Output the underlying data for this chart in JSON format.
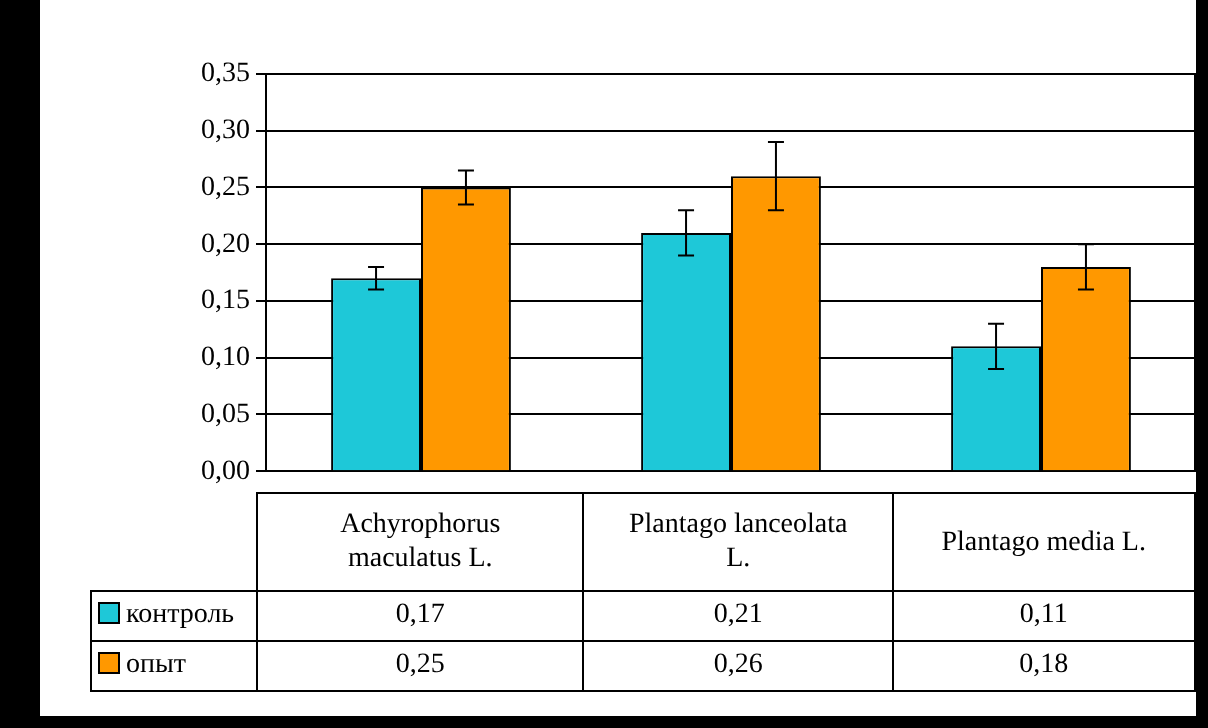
{
  "chart_data": {
    "type": "bar",
    "categories": [
      "Achyrophorus maculatus L.",
      "Plantago lanceolata L.",
      "Plantago media L."
    ],
    "series": [
      {
        "name": "контроль",
        "color": "#1ec8d8",
        "values": [
          0.17,
          0.21,
          0.11
        ],
        "value_labels": [
          "0,17",
          "0,21",
          "0,11"
        ],
        "errors": [
          0.01,
          0.02,
          0.02
        ]
      },
      {
        "name": "опыт",
        "color": "#ff9800",
        "values": [
          0.25,
          0.26,
          0.18
        ],
        "value_labels": [
          "0,25",
          "0,26",
          "0,18"
        ],
        "errors": [
          0.015,
          0.03,
          0.02
        ]
      }
    ],
    "ylim": [
      0,
      0.35
    ],
    "yticks": [
      {
        "value": 0,
        "label": "0,00"
      },
      {
        "value": 0.05,
        "label": "0,05"
      },
      {
        "value": 0.1,
        "label": "0,10"
      },
      {
        "value": 0.15,
        "label": "0,15"
      },
      {
        "value": 0.2,
        "label": "0,20"
      },
      {
        "value": 0.25,
        "label": "0,25"
      },
      {
        "value": 0.3,
        "label": "0,30"
      },
      {
        "value": 0.35,
        "label": "0,35"
      }
    ],
    "grid": "y",
    "legend": "bottom left"
  }
}
